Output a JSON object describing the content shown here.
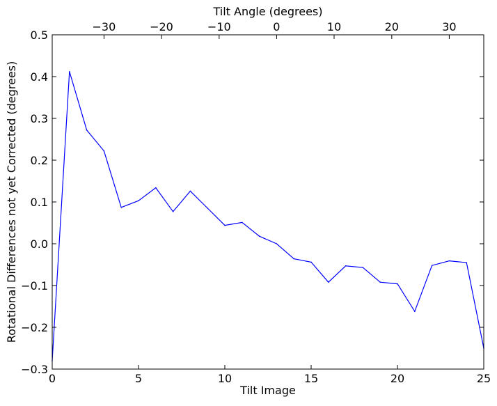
{
  "chart_data": {
    "type": "line",
    "title": "",
    "xlabel": "Tilt Image",
    "ylabel": "Rotational Differences not yet Corrected (degrees)",
    "top_xlabel": "Tilt Angle (degrees)",
    "xlim": [
      0,
      25
    ],
    "ylim": [
      -0.3,
      0.5
    ],
    "x_ticks": [
      0,
      5,
      10,
      15,
      20,
      25
    ],
    "x_tick_labels": [
      "0",
      "5",
      "10",
      "15",
      "20",
      "25"
    ],
    "y_ticks": [
      -0.3,
      -0.2,
      -0.1,
      0.0,
      0.1,
      0.2,
      0.3,
      0.4,
      0.5
    ],
    "y_tick_labels": [
      "−0.3",
      "−0.2",
      "−0.1",
      "0.0",
      "0.1",
      "0.2",
      "0.3",
      "0.4",
      "0.5"
    ],
    "top_axis": {
      "ticks": [
        -30,
        -20,
        -10,
        0,
        10,
        20,
        30
      ],
      "tick_labels": [
        "−30",
        "−20",
        "−10",
        "0",
        "10",
        "20",
        "30"
      ],
      "x_at_tick": [
        3,
        6.33,
        9.67,
        13,
        16.33,
        19.67,
        23
      ]
    },
    "grid": false,
    "series": [
      {
        "color": "#0000ff",
        "x": [
          0,
          1,
          2,
          3,
          4,
          5,
          6,
          7,
          8,
          9,
          10,
          11,
          12,
          13,
          14,
          15,
          16,
          17,
          18,
          19,
          20,
          21,
          22,
          23,
          24,
          25
        ],
        "y": [
          -0.28,
          0.412,
          0.272,
          0.222,
          0.087,
          0.103,
          0.134,
          0.077,
          0.126,
          0.085,
          0.044,
          0.051,
          0.018,
          0.0,
          -0.036,
          -0.044,
          -0.092,
          -0.053,
          -0.057,
          -0.092,
          -0.096,
          -0.162,
          -0.052,
          -0.041,
          -0.045,
          -0.25
        ]
      }
    ]
  }
}
